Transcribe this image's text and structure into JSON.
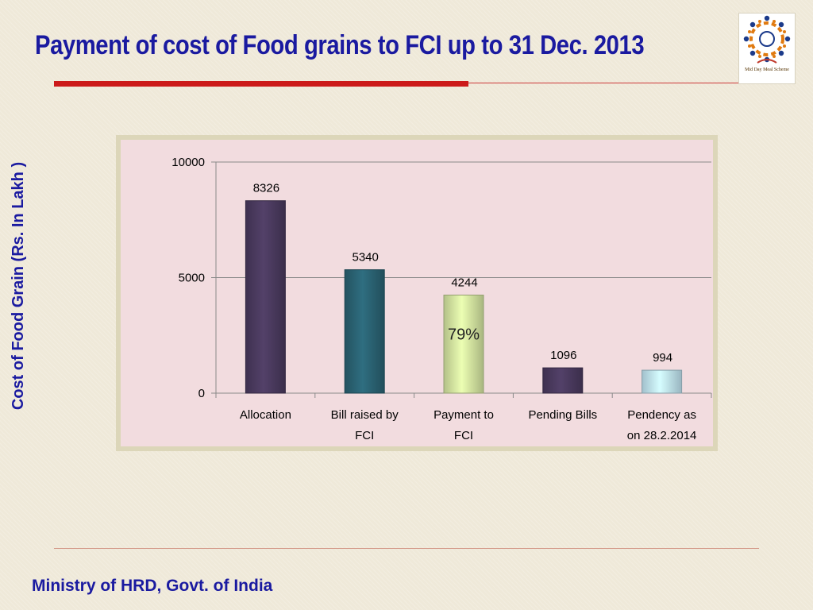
{
  "slide": {
    "title": "Payment of cost of Food grains to FCI up to 31 Dec. 2013",
    "footer": "Ministry of HRD, Govt. of India",
    "logo": {
      "icon": "mid-day-meal-logo",
      "caption": "Mid Day Meal Scheme"
    }
  },
  "colors": {
    "title": "#1a1aa0",
    "accent_rule": "#cc1a1a",
    "plot_bg": "#f2dcdf",
    "frame": "#dcd6b9"
  },
  "chart_data": {
    "type": "bar",
    "ylabel": "Cost of Food Grain (Rs. In Lakh )",
    "categories": [
      "Allocation",
      "Bill raised by FCI",
      "Payment to FCI",
      "Pending Bills",
      "Pendency as on 28.2.2014"
    ],
    "category_lines": [
      [
        "Allocation"
      ],
      [
        "Bill raised by",
        "FCI"
      ],
      [
        "Payment to",
        "FCI"
      ],
      [
        "Pending Bills"
      ],
      [
        "Pendency as",
        "on 28.2.2014"
      ]
    ],
    "values": [
      8326,
      5340,
      4244,
      1096,
      994
    ],
    "bar_colors": [
      "#4a3a5e",
      "#2a6272",
      "#d3e3a0",
      "#4a3a5e",
      "#bfe2f0"
    ],
    "ylim": [
      0,
      10000
    ],
    "yticks": [
      0,
      5000,
      10000
    ],
    "grid": true,
    "legend": "none",
    "annotations": [
      {
        "category": "Payment to FCI",
        "text": "79%"
      }
    ]
  }
}
